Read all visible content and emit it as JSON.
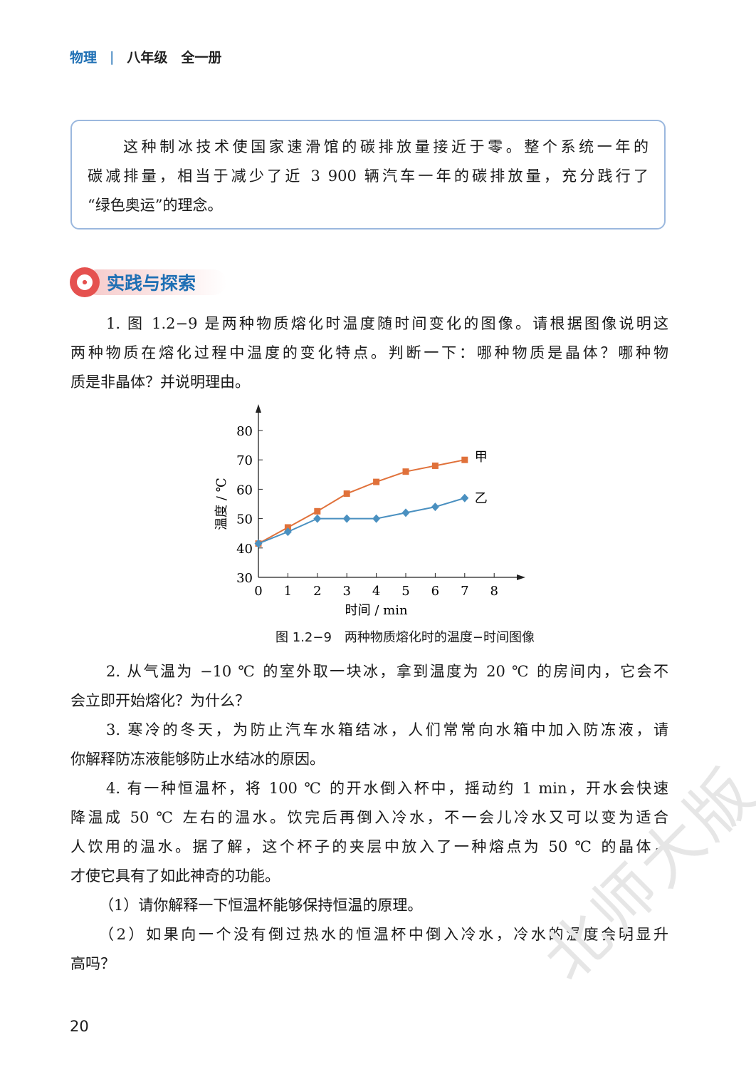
{
  "header": {
    "subject": "物理",
    "separator": "|",
    "grade": "八年级　全一册"
  },
  "info_box": {
    "lines": [
      "这种制冰技术使国家速滑馆的碳排放量接近于零。整个系统一年的",
      "碳减排量，相当于减少了近 3 900 辆汽车一年的碳排放量，充分践行了",
      "“绿色奥运”的理念。"
    ]
  },
  "section": {
    "title": "实践与探索",
    "icon": "target-icon",
    "color": "#1e6fb4"
  },
  "q1": {
    "lines": [
      "1. 图 1.2−9 是两种物质熔化时温度随时间变化的图像。请根据图像说明这",
      "两种物质在熔化过程中温度的变化特点。判断一下：哪种物质是晶体？哪种物",
      "质是非晶体？并说明理由。"
    ]
  },
  "chart_data": {
    "type": "line",
    "title": "",
    "xlabel": "时间 / min",
    "ylabel": "温度 / ℃",
    "xlim": [
      0,
      8
    ],
    "ylim": [
      30,
      80
    ],
    "xticks": [
      "0",
      "1",
      "2",
      "3",
      "4",
      "5",
      "6",
      "7",
      "8"
    ],
    "yticks": [
      "30",
      "40",
      "50",
      "60",
      "70",
      "80"
    ],
    "grid": false,
    "x": [
      0,
      1,
      2,
      3,
      4,
      5,
      6,
      7
    ],
    "series": [
      {
        "name": "甲",
        "color": "#e0713a",
        "marker": "square",
        "values": [
          41.5,
          47,
          52.5,
          58.5,
          62.5,
          66,
          68,
          70
        ]
      },
      {
        "name": "乙",
        "color": "#4a90c0",
        "marker": "diamond",
        "values": [
          41.5,
          45.5,
          50,
          50,
          50,
          52,
          54,
          57
        ]
      }
    ]
  },
  "caption": "图 1.2−9　两种物质熔化时的温度−时间图像",
  "q2": {
    "lines": [
      "2. 从气温为 −10 ℃ 的室外取一块冰，拿到温度为 20 ℃ 的房间内，它会不",
      "会立即开始熔化？为什么？"
    ]
  },
  "q3": {
    "lines": [
      "3. 寒冷的冬天，为防止汽车水箱结冰，人们常常向水箱中加入防冻液，请",
      "你解释防冻液能够防止水结冰的原因。"
    ]
  },
  "q4": {
    "lines": [
      "4. 有一种恒温杯，将 100 ℃ 的开水倒入杯中，摇动约 1 min，开水会快速",
      "降温成 50 ℃ 左右的温水。饮完后再倒入冷水，不一会儿冷水又可以变为适合",
      "人饮用的温水。据了解，这个杯子的夹层中放入了一种熔点为 50 ℃ 的晶体，",
      "才使它具有了如此神奇的功能。"
    ]
  },
  "q4_1": {
    "lines": [
      "（1）请你解释一下恒温杯能够保持恒温的原理。"
    ]
  },
  "q4_2": {
    "lines": [
      "（2）如果向一个没有倒过热水的恒温杯中倒入冷水，冷水的温度会明显升",
      "高吗？"
    ]
  },
  "page_number": "20",
  "watermark": "北师大版"
}
